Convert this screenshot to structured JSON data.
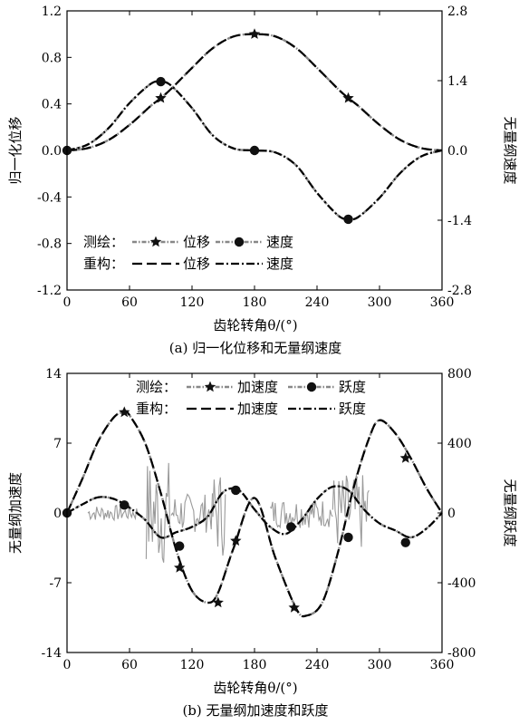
{
  "chart_data": [
    {
      "type": "line",
      "caption": "(a) 归一化位移和无量纲速度",
      "xlabel": "齿轮转角θ/(°)",
      "ylabel_left": "归一化位移",
      "ylabel_right": "无量纲速度",
      "xlim": [
        0,
        360
      ],
      "ylim_left": [
        -1.2,
        1.2
      ],
      "ylim_right": [
        -2.8,
        2.8
      ],
      "xticks": [
        "0",
        "60",
        "120",
        "180",
        "240",
        "300",
        "360"
      ],
      "yticks_left": [
        "1.2",
        "0.8",
        "0.4",
        "0.0",
        "-0.4",
        "-0.8",
        "-1.2"
      ],
      "yticks_right": [
        "2.8",
        "1.4",
        "0.0",
        "-1.4",
        "-2.8"
      ],
      "legend": {
        "row1_label": "测绘：",
        "row2_label": "重构：",
        "entries": [
          "位移",
          "速度",
          "位移",
          "速度"
        ],
        "placement": "lower-left"
      },
      "series": [
        {
          "name": "位移",
          "group": "测绘",
          "axis": "left",
          "color": "#888888",
          "marker": "star",
          "x": [
            0,
            20,
            40,
            60,
            80,
            90,
            100,
            120,
            140,
            160,
            180,
            200,
            220,
            240,
            260,
            270,
            280,
            300,
            320,
            340,
            360
          ],
          "y": [
            0,
            0.02,
            0.09,
            0.22,
            0.38,
            0.45,
            0.53,
            0.71,
            0.88,
            0.98,
            1.0,
            0.98,
            0.88,
            0.71,
            0.53,
            0.45,
            0.38,
            0.22,
            0.09,
            0.02,
            0
          ]
        },
        {
          "name": "速度",
          "group": "测绘",
          "axis": "right",
          "color": "#888888",
          "marker": "circle",
          "x": [
            0,
            20,
            40,
            60,
            80,
            90,
            100,
            120,
            140,
            160,
            180,
            200,
            220,
            240,
            260,
            270,
            280,
            300,
            320,
            340,
            360
          ],
          "y": [
            0,
            0.12,
            0.45,
            0.95,
            1.33,
            1.38,
            1.3,
            0.85,
            0.3,
            0.04,
            0,
            -0.04,
            -0.3,
            -0.85,
            -1.3,
            -1.38,
            -1.33,
            -0.95,
            -0.45,
            -0.12,
            0
          ]
        },
        {
          "name": "位移",
          "group": "重构",
          "axis": "left",
          "color": "#000000",
          "marker": "none",
          "x": [
            0,
            20,
            40,
            60,
            80,
            90,
            100,
            120,
            140,
            160,
            180,
            200,
            220,
            240,
            260,
            270,
            280,
            300,
            320,
            340,
            360
          ],
          "y": [
            0,
            0.02,
            0.09,
            0.22,
            0.38,
            0.45,
            0.53,
            0.71,
            0.88,
            0.98,
            1.0,
            0.98,
            0.88,
            0.71,
            0.53,
            0.45,
            0.38,
            0.22,
            0.09,
            0.02,
            0
          ]
        },
        {
          "name": "速度",
          "group": "重构",
          "axis": "right",
          "color": "#000000",
          "marker": "none",
          "x": [
            0,
            20,
            40,
            60,
            80,
            90,
            100,
            120,
            140,
            160,
            180,
            200,
            220,
            240,
            260,
            270,
            280,
            300,
            320,
            340,
            360
          ],
          "y": [
            0,
            0.12,
            0.45,
            0.95,
            1.33,
            1.38,
            1.3,
            0.85,
            0.3,
            0.04,
            0,
            -0.04,
            -0.3,
            -0.85,
            -1.3,
            -1.38,
            -1.33,
            -0.95,
            -0.45,
            -0.12,
            0
          ]
        }
      ],
      "markers": [
        {
          "series": "位移",
          "marker": "star",
          "x": [
            90,
            180,
            270
          ],
          "y": [
            0.45,
            1.0,
            0.45
          ]
        },
        {
          "series": "速度",
          "marker": "circle",
          "x": [
            0,
            90,
            180,
            270
          ],
          "y": [
            0,
            1.38,
            0,
            -1.38
          ]
        }
      ]
    },
    {
      "type": "line",
      "caption": "(b) 无量纲加速度和跃度",
      "xlabel": "齿轮转角θ/(°)",
      "ylabel_left": "无量纲加速度",
      "ylabel_right": "无量纲跃度",
      "xlim": [
        0,
        360
      ],
      "ylim_left": [
        -14,
        14
      ],
      "ylim_right": [
        -800,
        800
      ],
      "xticks": [
        "0",
        "60",
        "120",
        "180",
        "240",
        "300",
        "360"
      ],
      "yticks_left": [
        "14",
        "7",
        "0",
        "-7",
        "-14"
      ],
      "yticks_right": [
        "800",
        "400",
        "0",
        "-400",
        "-800"
      ],
      "legend": {
        "row1_label": "测绘：",
        "row2_label": "重构：",
        "entries": [
          "加速度",
          "跃度",
          "加速度",
          "跃度"
        ],
        "placement": "top"
      },
      "series": [
        {
          "name": "加速度",
          "group": "测绘",
          "axis": "left",
          "color": "#888888",
          "marker": "star",
          "x": [
            0,
            15,
            30,
            45,
            55,
            60,
            75,
            90,
            105,
            120,
            135,
            145,
            160,
            180,
            200,
            220,
            230,
            245,
            260,
            275,
            290,
            300,
            315,
            330,
            345,
            360
          ],
          "y": [
            0,
            3.5,
            7.2,
            9.6,
            10.1,
            9.8,
            7.0,
            2.0,
            -3.8,
            -7.8,
            -9.0,
            -8.0,
            -3.5,
            1.5,
            -4.5,
            -9.6,
            -10.3,
            -9.0,
            -4.0,
            2.5,
            7.5,
            9.3,
            8.0,
            5.5,
            2.5,
            0
          ]
        },
        {
          "name": "跃度",
          "group": "测绘",
          "axis": "right",
          "color": "#888888",
          "marker": "circle",
          "x": [
            0,
            15,
            30,
            45,
            60,
            75,
            90,
            105,
            120,
            135,
            150,
            165,
            180,
            195,
            210,
            225,
            240,
            255,
            270,
            285,
            300,
            315,
            330,
            345,
            360
          ],
          "y": [
            0,
            50,
            90,
            80,
            30,
            -40,
            -140,
            -110,
            -80,
            -20,
            120,
            130,
            20,
            -80,
            -120,
            -40,
            80,
            150,
            130,
            20,
            -60,
            -100,
            -140,
            -90,
            0
          ]
        },
        {
          "name": "加速度",
          "group": "重构",
          "axis": "left",
          "color": "#000000",
          "marker": "none",
          "x": [
            0,
            15,
            30,
            45,
            55,
            60,
            75,
            90,
            105,
            120,
            135,
            145,
            160,
            180,
            200,
            220,
            230,
            245,
            260,
            275,
            290,
            300,
            315,
            330,
            345,
            360
          ],
          "y": [
            0,
            3.5,
            7.2,
            9.6,
            10.1,
            9.8,
            7.0,
            2.0,
            -3.8,
            -7.8,
            -9.0,
            -8.0,
            -3.5,
            1.5,
            -4.5,
            -9.6,
            -10.3,
            -9.0,
            -4.0,
            2.5,
            7.5,
            9.3,
            8.0,
            5.5,
            2.5,
            0
          ]
        },
        {
          "name": "跃度",
          "group": "重构",
          "axis": "right",
          "color": "#000000",
          "marker": "none",
          "x": [
            0,
            15,
            30,
            45,
            60,
            75,
            90,
            105,
            120,
            135,
            150,
            165,
            180,
            195,
            210,
            225,
            240,
            255,
            270,
            285,
            300,
            315,
            330,
            345,
            360
          ],
          "y": [
            0,
            50,
            90,
            80,
            30,
            -40,
            -140,
            -110,
            -80,
            -20,
            120,
            130,
            20,
            -80,
            -120,
            -40,
            80,
            150,
            130,
            20,
            -60,
            -100,
            -140,
            -90,
            0
          ]
        }
      ],
      "markers": [
        {
          "series": "加速度",
          "marker": "star",
          "x": [
            55,
            108,
            145,
            162,
            218,
            325
          ],
          "y": [
            10.1,
            -5.5,
            -9.0,
            -2.8,
            -9.5,
            5.5
          ]
        },
        {
          "series": "跃度",
          "marker": "circle",
          "x": [
            0,
            55,
            108,
            162,
            215,
            270,
            325
          ],
          "y": [
            0,
            45,
            -190,
            130,
            -80,
            -140,
            -170
          ]
        }
      ]
    }
  ]
}
